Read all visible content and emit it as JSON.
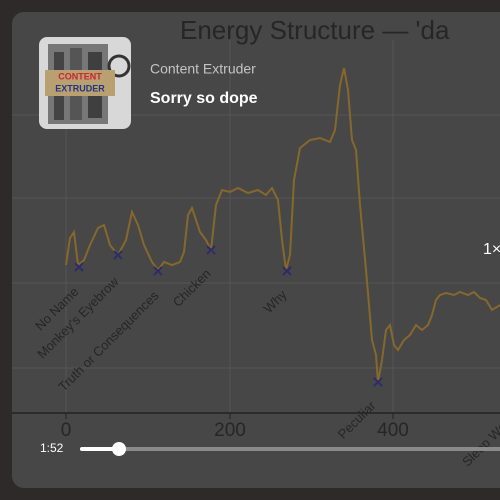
{
  "player": {
    "artist": "Content Extruder",
    "track": "Sorry so dope",
    "elapsed": "1:52",
    "speed": "1×",
    "album_art_text": [
      "CONTENT",
      "EXTRUDER"
    ]
  },
  "background_chart": {
    "title": "Energy Structure — 'da",
    "x_tick_labels": [
      "0",
      "200",
      "400"
    ],
    "section_labels": [
      "No Name",
      "Monkey's Eyebrow",
      "Truth or Consequences",
      "Chicken",
      "Why",
      "Peculiar",
      "Sleep Wee"
    ]
  }
}
